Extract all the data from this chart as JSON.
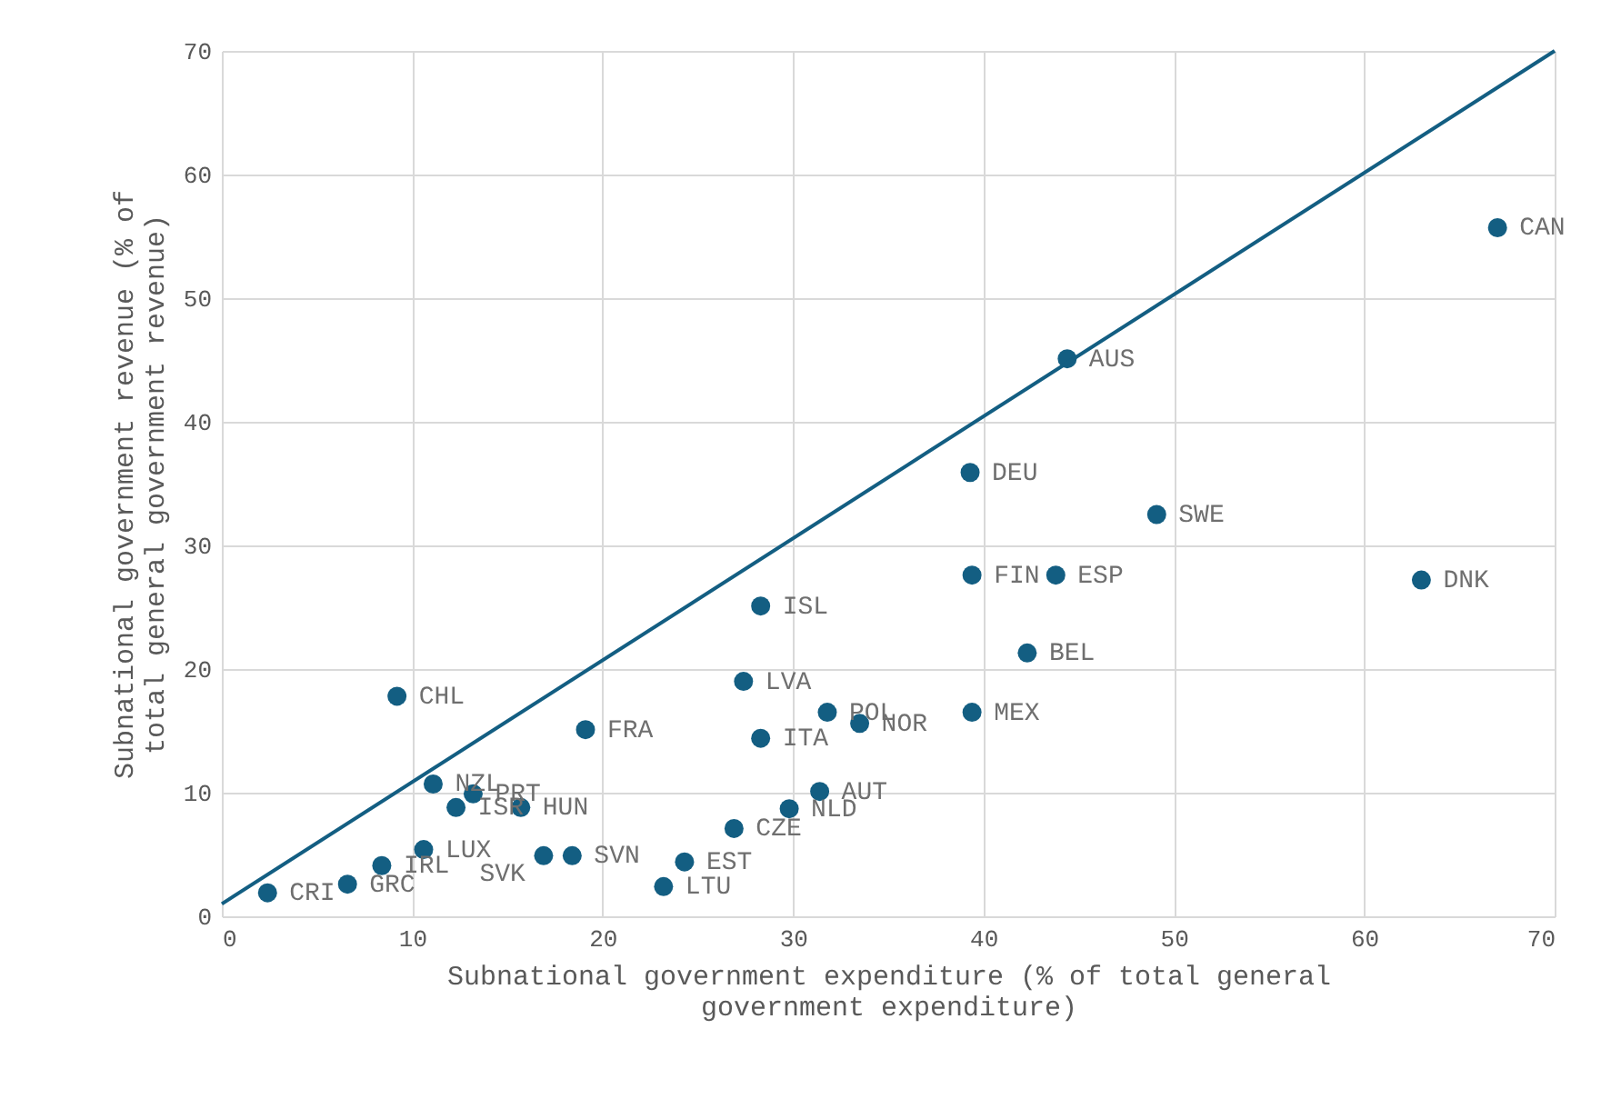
{
  "chart_data": {
    "type": "scatter",
    "xlabel": "Subnational government expenditure (% of total general government expenditure)",
    "ylabel": "Subnational government revenue (% of total general government revenue)",
    "xlim": [
      0,
      70
    ],
    "xticks": [
      0,
      10,
      20,
      30,
      40,
      50,
      60,
      70
    ],
    "ylim": [
      0,
      70
    ],
    "yticks": [
      0,
      10,
      20,
      30,
      40,
      50,
      60,
      70
    ],
    "grid": true,
    "series": [
      {
        "marker": "circle",
        "color": "#135e82",
        "x": [
          2.4,
          6.6,
          8.4,
          10.6,
          11.1,
          12.3,
          13.2,
          15.7,
          16.9,
          18.4,
          9.2,
          19.1,
          23.2,
          24.3,
          26.9,
          29.8,
          31.4,
          27.4,
          28.3,
          31.8,
          33.5,
          28.3,
          39.4,
          42.3,
          39.4,
          43.8,
          39.3,
          49.1,
          63.0,
          44.4,
          67.0
        ],
        "values": [
          1.9,
          2.6,
          4.1,
          5.4,
          10.7,
          8.8,
          9.9,
          8.8,
          4.9,
          4.9,
          17.8,
          15.1,
          2.4,
          4.4,
          7.1,
          8.7,
          10.1,
          19.0,
          14.4,
          16.5,
          15.6,
          25.1,
          16.5,
          21.3,
          27.6,
          27.6,
          35.9,
          32.5,
          27.2,
          45.1,
          55.7
        ]
      },
      {
        "type": "line",
        "color": "#135e82",
        "x": [
          0,
          70
        ],
        "values": [
          1,
          70
        ]
      }
    ],
    "annotations": [
      {
        "text": "CRI",
        "x": 2.4,
        "y": 1.9
      },
      {
        "text": "GRC",
        "x": 6.6,
        "y": 2.6
      },
      {
        "text": "IRL",
        "x": 8.4,
        "y": 4.1
      },
      {
        "text": "LUX",
        "x": 10.6,
        "y": 5.4
      },
      {
        "text": "NZL",
        "x": 11.1,
        "y": 10.7
      },
      {
        "text": "ISR",
        "x": 12.3,
        "y": 8.8
      },
      {
        "text": "PRT",
        "x": 13.2,
        "y": 9.9
      },
      {
        "text": "HUN",
        "x": 15.7,
        "y": 8.8
      },
      {
        "text": "SVK",
        "x": 16.9,
        "y": 4.9
      },
      {
        "text": "SVN",
        "x": 18.4,
        "y": 4.9
      },
      {
        "text": "CHL",
        "x": 9.2,
        "y": 17.8
      },
      {
        "text": "FRA",
        "x": 19.1,
        "y": 15.1
      },
      {
        "text": "LTU",
        "x": 23.2,
        "y": 2.4
      },
      {
        "text": "EST",
        "x": 24.3,
        "y": 4.4
      },
      {
        "text": "CZE",
        "x": 26.9,
        "y": 7.1
      },
      {
        "text": "NLD",
        "x": 29.8,
        "y": 8.7
      },
      {
        "text": "AUT",
        "x": 31.4,
        "y": 10.1
      },
      {
        "text": "LVA",
        "x": 27.4,
        "y": 19.0
      },
      {
        "text": "ITA",
        "x": 28.3,
        "y": 14.4
      },
      {
        "text": "POL",
        "x": 31.8,
        "y": 16.5
      },
      {
        "text": "NOR",
        "x": 33.5,
        "y": 15.6
      },
      {
        "text": "ISL",
        "x": 28.3,
        "y": 25.1
      },
      {
        "text": "MEX",
        "x": 39.4,
        "y": 16.5
      },
      {
        "text": "BEL",
        "x": 42.3,
        "y": 21.3
      },
      {
        "text": "FIN",
        "x": 39.4,
        "y": 27.6
      },
      {
        "text": "ESP",
        "x": 43.8,
        "y": 27.6
      },
      {
        "text": "DEU",
        "x": 39.3,
        "y": 35.9
      },
      {
        "text": "SWE",
        "x": 49.1,
        "y": 32.5
      },
      {
        "text": "DNK",
        "x": 63.0,
        "y": 27.2
      },
      {
        "text": "AUS",
        "x": 44.4,
        "y": 45.1
      },
      {
        "text": "CAN",
        "x": 67.0,
        "y": 55.7
      }
    ]
  }
}
